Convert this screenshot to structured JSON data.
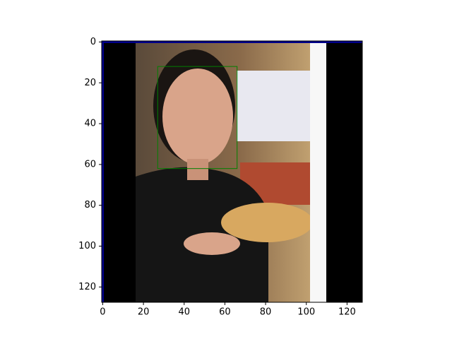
{
  "chart_data": {
    "type": "image",
    "xlim": [
      -0.5,
      127.5
    ],
    "ylim": [
      127.5,
      -0.5
    ],
    "xticks": [
      0,
      20,
      40,
      60,
      80,
      100,
      120
    ],
    "yticks": [
      0,
      20,
      40,
      60,
      80,
      100,
      120
    ],
    "box": {
      "x0": 27,
      "y0": 12,
      "x1": 66,
      "y1": 62,
      "color": "#008000"
    }
  }
}
